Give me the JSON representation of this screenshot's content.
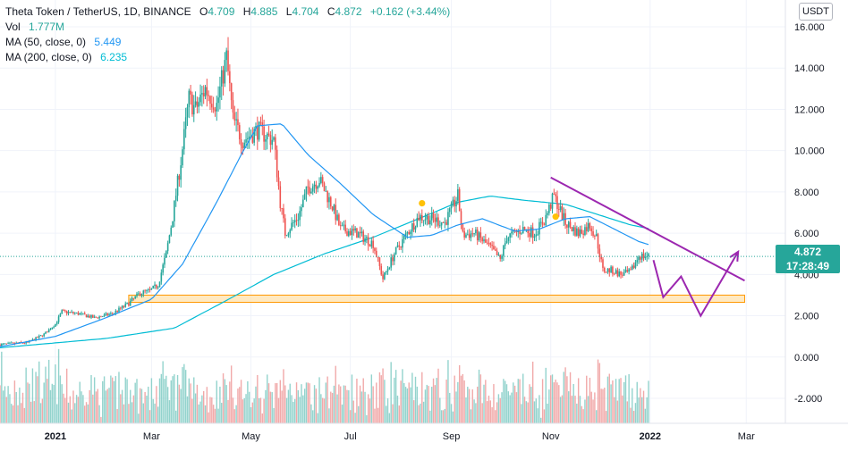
{
  "legend": {
    "symbol": "Theta Token / TetherUS, 1D, BINANCE",
    "open_key": "O",
    "open": "4.709",
    "high_key": "H",
    "high": "4.885",
    "low_key": "L",
    "low": "4.704",
    "close_key": "C",
    "close": "4.872",
    "change": "+0.162 (+3.44%)",
    "vol_label": "Vol",
    "vol": "1.777M",
    "ma50_label": "MA (50, close, 0)",
    "ma50": "5.449",
    "ma200_label": "MA (200, close, 0)",
    "ma200": "6.235"
  },
  "currency": "USDT",
  "last_price": {
    "value": "4.872",
    "countdown": "17:28:49"
  },
  "colors": {
    "up": "#26a69a",
    "down": "#ef5350",
    "ma50": "#2196f3",
    "ma200": "#00bcd4",
    "drawing": "#9c27b0",
    "zone_fill": "#ffe0a6",
    "zone_stroke": "#ff9800",
    "marker": "#ffc107",
    "volume": "#ef9a9a"
  },
  "chart_data": {
    "type": "candlestick",
    "y_ticks": [
      "16.000",
      "14.000",
      "12.000",
      "10.000",
      "8.000",
      "6.000",
      "4.000",
      "2.000",
      "0.000",
      "-2.000"
    ],
    "ylim": [
      -3.0,
      16.5
    ],
    "x_ticks": [
      {
        "label": "2021",
        "date": "2021-01-01"
      },
      {
        "label": "Mar",
        "date": "2021-03-01"
      },
      {
        "label": "May",
        "date": "2021-05-01"
      },
      {
        "label": "Jul",
        "date": "2021-07-01"
      },
      {
        "label": "Sep",
        "date": "2021-09-01"
      },
      {
        "label": "Nov",
        "date": "2021-11-01"
      },
      {
        "label": "2022",
        "date": "2022-01-01"
      },
      {
        "label": "Mar",
        "date": "2022-03-01"
      }
    ],
    "xlim": [
      "2020-11-28",
      "2022-03-25"
    ],
    "price_path": [
      [
        "2020-11-28",
        0.6
      ],
      [
        "2020-12-15",
        0.7
      ],
      [
        "2020-12-25",
        1.1
      ],
      [
        "2021-01-01",
        1.6
      ],
      [
        "2021-01-05",
        2.2
      ],
      [
        "2021-01-15",
        2.1
      ],
      [
        "2021-01-25",
        1.9
      ],
      [
        "2021-02-05",
        2.1
      ],
      [
        "2021-02-15",
        2.6
      ],
      [
        "2021-02-22",
        3.1
      ],
      [
        "2021-02-28",
        3.2
      ],
      [
        "2021-03-05",
        3.5
      ],
      [
        "2021-03-10",
        5.0
      ],
      [
        "2021-03-14",
        6.8
      ],
      [
        "2021-03-19",
        9.5
      ],
      [
        "2021-03-24",
        12.5
      ],
      [
        "2021-03-28",
        12.0
      ],
      [
        "2021-04-03",
        13.0
      ],
      [
        "2021-04-10",
        12.2
      ],
      [
        "2021-04-16",
        14.5
      ],
      [
        "2021-04-20",
        11.5
      ],
      [
        "2021-04-26",
        10.5
      ],
      [
        "2021-05-05",
        11.0
      ],
      [
        "2021-05-15",
        10.5
      ],
      [
        "2021-05-19",
        7.5
      ],
      [
        "2021-05-22",
        6.0
      ],
      [
        "2021-05-30",
        6.8
      ],
      [
        "2021-06-05",
        8.2
      ],
      [
        "2021-06-12",
        8.6
      ],
      [
        "2021-06-20",
        7.3
      ],
      [
        "2021-06-25",
        6.2
      ],
      [
        "2021-07-05",
        6.0
      ],
      [
        "2021-07-15",
        5.5
      ],
      [
        "2021-07-21",
        3.8
      ],
      [
        "2021-07-28",
        5.0
      ],
      [
        "2021-08-05",
        6.0
      ],
      [
        "2021-08-12",
        6.8
      ],
      [
        "2021-08-20",
        6.7
      ],
      [
        "2021-08-28",
        6.5
      ],
      [
        "2021-09-05",
        7.8
      ],
      [
        "2021-09-08",
        5.9
      ],
      [
        "2021-09-15",
        6.0
      ],
      [
        "2021-09-25",
        5.3
      ],
      [
        "2021-10-01",
        4.7
      ],
      [
        "2021-10-05",
        5.8
      ],
      [
        "2021-10-15",
        6.2
      ],
      [
        "2021-10-22",
        6.0
      ],
      [
        "2021-10-28",
        6.6
      ],
      [
        "2021-11-03",
        7.8
      ],
      [
        "2021-11-10",
        6.5
      ],
      [
        "2021-11-18",
        6.0
      ],
      [
        "2021-11-25",
        6.4
      ],
      [
        "2021-11-29",
        5.8
      ],
      [
        "2021-12-03",
        4.2
      ],
      [
        "2021-12-08",
        4.2
      ],
      [
        "2021-12-14",
        4.0
      ],
      [
        "2021-12-20",
        4.1
      ],
      [
        "2021-12-25",
        4.9
      ],
      [
        "2021-12-31",
        4.87
      ]
    ],
    "ma50_path": [
      [
        "2020-11-28",
        0.5
      ],
      [
        "2021-01-01",
        1.0
      ],
      [
        "2021-02-01",
        1.9
      ],
      [
        "2021-03-01",
        2.8
      ],
      [
        "2021-03-20",
        4.5
      ],
      [
        "2021-04-10",
        7.5
      ],
      [
        "2021-04-25",
        9.8
      ],
      [
        "2021-05-05",
        11.2
      ],
      [
        "2021-05-20",
        11.3
      ],
      [
        "2021-06-05",
        9.8
      ],
      [
        "2021-06-25",
        8.4
      ],
      [
        "2021-07-15",
        6.9
      ],
      [
        "2021-08-05",
        5.8
      ],
      [
        "2021-08-20",
        5.9
      ],
      [
        "2021-09-05",
        6.4
      ],
      [
        "2021-09-20",
        6.7
      ],
      [
        "2021-10-10",
        6.1
      ],
      [
        "2021-10-25",
        6.2
      ],
      [
        "2021-11-10",
        6.7
      ],
      [
        "2021-11-25",
        6.8
      ],
      [
        "2021-12-10",
        6.2
      ],
      [
        "2021-12-25",
        5.6
      ],
      [
        "2021-12-31",
        5.45
      ]
    ],
    "ma200_path": [
      [
        "2020-11-28",
        0.45
      ],
      [
        "2021-02-01",
        0.9
      ],
      [
        "2021-03-15",
        1.4
      ],
      [
        "2021-04-15",
        2.7
      ],
      [
        "2021-05-15",
        4.0
      ],
      [
        "2021-06-15",
        5.0
      ],
      [
        "2021-07-15",
        5.8
      ],
      [
        "2021-08-15",
        6.8
      ],
      [
        "2021-09-05",
        7.5
      ],
      [
        "2021-09-25",
        7.8
      ],
      [
        "2021-10-15",
        7.6
      ],
      [
        "2021-11-10",
        7.4
      ],
      [
        "2021-11-30",
        6.9
      ],
      [
        "2021-12-20",
        6.4
      ],
      [
        "2021-12-31",
        6.23
      ]
    ],
    "drawings": {
      "trendline": [
        [
          "2021-11-01",
          8.7
        ],
        [
          "2022-02-28",
          3.7
        ]
      ],
      "support_zone": {
        "from": "2021-02-15",
        "to": "2022-02-28",
        "low": 2.65,
        "high": 3.0
      },
      "projection": [
        [
          "2022-01-03",
          4.7
        ],
        [
          "2022-01-09",
          2.9
        ],
        [
          "2022-01-20",
          3.9
        ],
        [
          "2022-02-01",
          2.0
        ],
        [
          "2022-02-24",
          5.1
        ]
      ],
      "markers": [
        [
          "2021-08-14",
          7.45
        ],
        [
          "2021-11-04",
          6.8
        ]
      ]
    }
  }
}
